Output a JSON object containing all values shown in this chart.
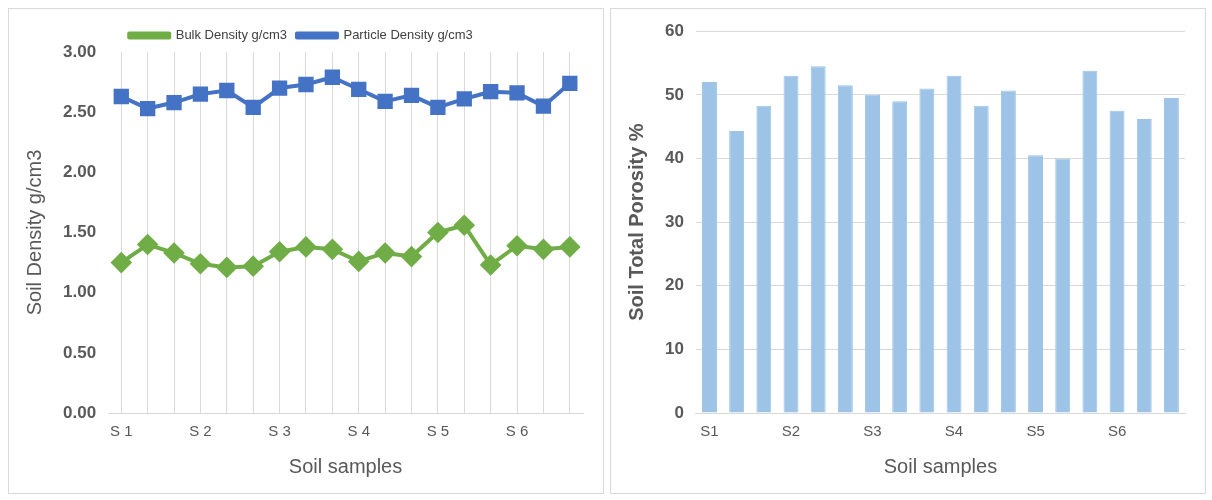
{
  "chart_data": [
    {
      "type": "line",
      "xlabel": "Soil samples",
      "ylabel": "Soil Density g/cm3",
      "categories": [
        "S 1",
        null,
        null,
        "S 2",
        null,
        null,
        "S 3",
        null,
        null,
        "S 4",
        null,
        null,
        "S 5",
        null,
        null,
        "S 6",
        null,
        null
      ],
      "series": [
        {
          "name": "Bulk Density g/cm3",
          "color": "#70ad47",
          "marker": "diamond",
          "values": [
            1.25,
            1.4,
            1.33,
            1.24,
            1.21,
            1.22,
            1.34,
            1.38,
            1.36,
            1.26,
            1.33,
            1.3,
            1.5,
            1.56,
            1.23,
            1.39,
            1.36,
            1.38
          ]
        },
        {
          "name": "Particle Density g/cm3",
          "color": "#4472c4",
          "marker": "square",
          "values": [
            2.63,
            2.53,
            2.58,
            2.65,
            2.68,
            2.54,
            2.7,
            2.73,
            2.79,
            2.69,
            2.59,
            2.64,
            2.54,
            2.61,
            2.67,
            2.66,
            2.55,
            2.74
          ]
        }
      ],
      "ylim": [
        0,
        3
      ],
      "yticks": [
        {
          "value": 0,
          "label": "0.00"
        },
        {
          "value": 0.5,
          "label": "0.50"
        },
        {
          "value": 1,
          "label": "1.00"
        },
        {
          "value": 1.5,
          "label": "1.50"
        },
        {
          "value": 2,
          "label": "2.00"
        },
        {
          "value": 2.5,
          "label": "2.50"
        },
        {
          "value": 3,
          "label": "3.00"
        }
      ],
      "grid": "x",
      "legend": "top",
      "line_style": "solid"
    },
    {
      "type": "bar",
      "xlabel": "Soil samples",
      "ylabel": "Soil Total Porosity %",
      "categories": [
        "S1",
        null,
        null,
        "S2",
        null,
        null,
        "S3",
        null,
        null,
        "S4",
        null,
        null,
        "S5",
        null,
        null,
        "S6",
        null,
        null
      ],
      "values": [
        52,
        44.3,
        48.3,
        53,
        54.5,
        51.5,
        50,
        49,
        51,
        53,
        48.3,
        50.7,
        40.5,
        40,
        53.8,
        47.5,
        46.2,
        49.5
      ],
      "color": "#9dc3e6",
      "ylim": [
        0,
        60
      ],
      "yticks": [
        0,
        10,
        20,
        30,
        40,
        50,
        60
      ],
      "grid": "y",
      "legend": false
    }
  ]
}
